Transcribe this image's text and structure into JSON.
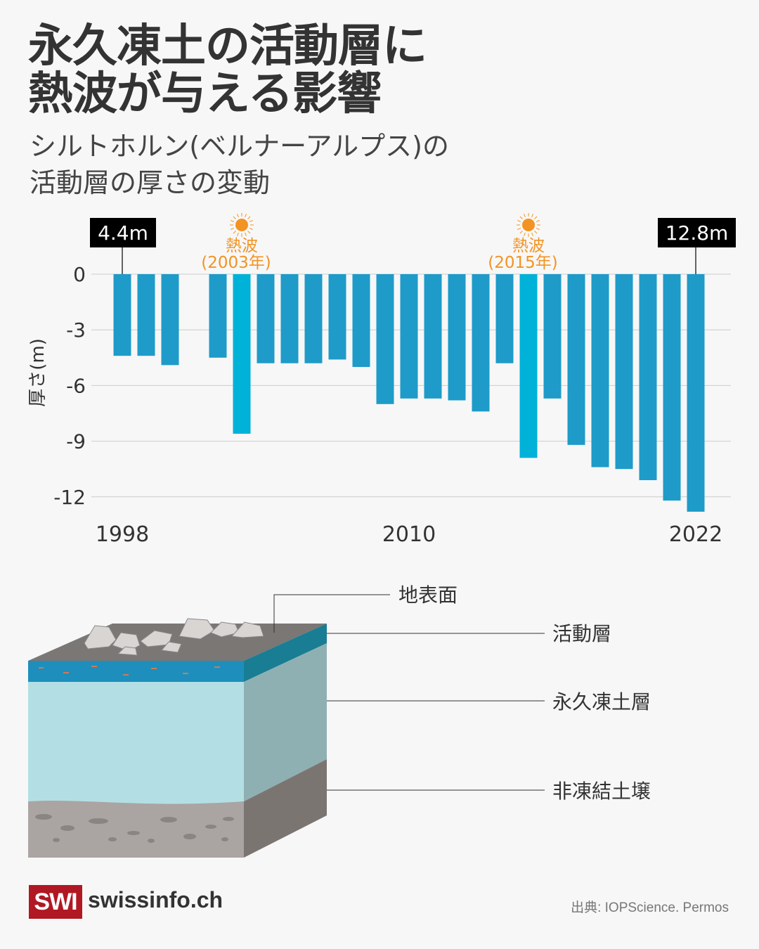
{
  "title_lines": [
    "永久凍土の活動層に",
    "熱波が与える影響"
  ],
  "subtitle_lines": [
    "シルトホルン(ベルナーアルプス)の",
    "活動層の厚さの変動"
  ],
  "chart_data": {
    "type": "bar",
    "ylabel": "厚さ(m)",
    "ylim": [
      -12.8,
      0
    ],
    "yticks": [
      0,
      -3,
      -6,
      -9,
      -12
    ],
    "ytick_labels": [
      "0",
      "-3",
      "-6",
      "-9",
      "-12"
    ],
    "xtick_labels": [
      "1998",
      "2010",
      "2022"
    ],
    "grid": true,
    "x": [
      1998,
      1999,
      2000,
      2002,
      2003,
      2004,
      2005,
      2006,
      2007,
      2008,
      2009,
      2010,
      2011,
      2012,
      2013,
      2014,
      2015,
      2016,
      2017,
      2018,
      2019,
      2020,
      2021,
      2022
    ],
    "values": [
      -4.4,
      -4.4,
      -4.9,
      -4.5,
      -8.6,
      -4.8,
      -4.8,
      -4.8,
      -4.6,
      -5.0,
      -7.0,
      -6.7,
      -6.7,
      -6.8,
      -7.4,
      -4.8,
      -9.9,
      -6.7,
      -9.2,
      -10.4,
      -10.5,
      -11.1,
      -12.2,
      -12.8
    ],
    "bar_color": "#1e9bc8",
    "highlight_color": "#00b1d8",
    "highlight_years": [
      2003,
      2015
    ],
    "callouts": [
      {
        "year": 1998,
        "label": "4.4m"
      },
      {
        "year": 2022,
        "label": "12.8m"
      }
    ],
    "annotations": [
      {
        "year": 2003,
        "line1": "熱波",
        "line2": "(2003年)",
        "icon": "sun-icon"
      },
      {
        "year": 2015,
        "line1": "熱波",
        "line2": "(2015年)",
        "icon": "sun-icon"
      }
    ],
    "annotation_color": "#f39323"
  },
  "diagram": {
    "labels": {
      "surface": "地表面",
      "active_layer": "活動層",
      "permafrost": "永久凍土層",
      "unfrozen_soil": "非凍結土壌"
    }
  },
  "footer": {
    "logo": "SWI",
    "site": "swissinfo.ch",
    "source": "出典: IOPScience. Permos"
  }
}
